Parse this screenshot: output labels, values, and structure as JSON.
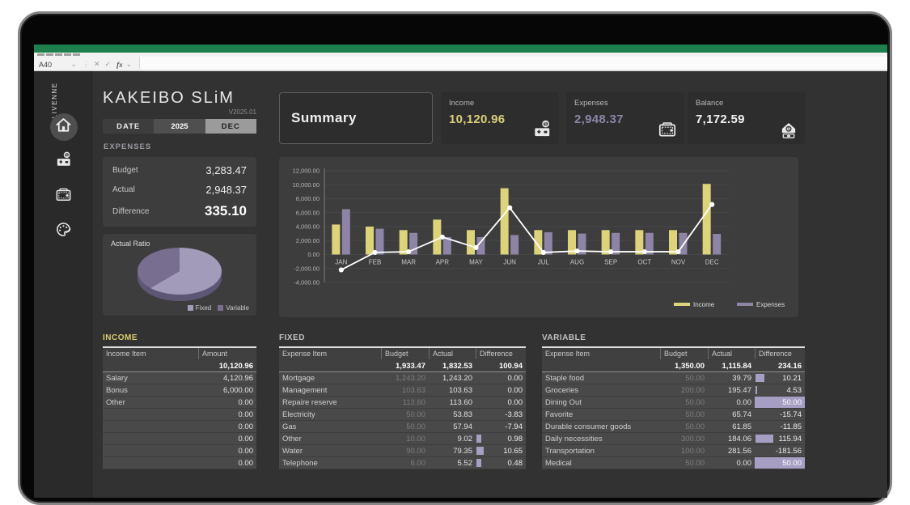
{
  "chrome": {
    "name_box": "A40",
    "fx_label": "fx",
    "brand_vertical": "OLIVENNE"
  },
  "sidebar": {
    "items": [
      {
        "name": "home",
        "icon": "home-icon",
        "active": true
      },
      {
        "name": "income",
        "icon": "cash-register-icon",
        "active": false
      },
      {
        "name": "wallet",
        "icon": "wallet-icon",
        "active": false
      },
      {
        "name": "theme",
        "icon": "palette-icon",
        "active": false
      }
    ]
  },
  "header": {
    "title": "KAKEIBO SLiM",
    "version": "V2025.01",
    "date": {
      "label": "DATE",
      "year": "2025",
      "month": "DEC"
    }
  },
  "summary": {
    "title": "Summary",
    "cards": [
      {
        "label": "Income",
        "value": "10,120.96",
        "color": "#d9ce79",
        "icon": "cash-register-icon"
      },
      {
        "label": "Expenses",
        "value": "2,948.37",
        "color": "#8d84a8",
        "icon": "wallet-icon"
      },
      {
        "label": "Balance",
        "value": "7,172.59",
        "color": "#f2f2f2",
        "icon": "house-savings-icon"
      }
    ]
  },
  "expenses_panel": {
    "title": "EXPENSES",
    "rows": [
      {
        "label": "Budget",
        "value": "3,283.47"
      },
      {
        "label": "Actual",
        "value": "2,948.37"
      },
      {
        "label": "Difference",
        "value": "335.10"
      }
    ]
  },
  "chart_data": [
    {
      "type": "bar",
      "title": "Monthly Income vs Expenses with Balance line",
      "categories": [
        "JAN",
        "FEB",
        "MAR",
        "APR",
        "MAY",
        "JUN",
        "JUL",
        "AUG",
        "SEP",
        "OCT",
        "NOV",
        "DEC"
      ],
      "series": [
        {
          "name": "Income",
          "chart": "bar",
          "color": "#ddd37a",
          "in_legend": true,
          "values": [
            4300,
            4000,
            3500,
            5000,
            3500,
            9500,
            3500,
            3500,
            3500,
            3500,
            3500,
            10120.96
          ]
        },
        {
          "name": "Expenses",
          "chart": "bar",
          "color": "#8d84a6",
          "in_legend": true,
          "values": [
            6500,
            3700,
            3100,
            2500,
            2500,
            2800,
            3200,
            3000,
            3100,
            3100,
            3100,
            2948.37
          ]
        },
        {
          "name": "Balance",
          "chart": "line",
          "color": "#ffffff",
          "in_legend": false,
          "values": [
            -2200,
            300,
            400,
            2500,
            1000,
            6700,
            300,
            500,
            400,
            400,
            400,
            7172.59
          ]
        }
      ],
      "ylim": [
        -4000,
        12000
      ],
      "ytick_step": 2000,
      "grid": true,
      "legend_position": "bottom-right"
    },
    {
      "type": "pie",
      "title": "Actual Ratio",
      "labels": [
        "Fixed",
        "Variable"
      ],
      "values": [
        1832.53,
        1115.84
      ],
      "colors": [
        "#a39bba",
        "#786e8f"
      ],
      "legend_position": "bottom-right"
    }
  ],
  "tables": {
    "income": {
      "title": "INCOME",
      "headers": [
        "Income Item",
        "Amount"
      ],
      "total": "10,120.96",
      "rows": [
        {
          "item": "Salary",
          "amount": "4,120.96"
        },
        {
          "item": "Bonus",
          "amount": "6,000.00"
        },
        {
          "item": "Other",
          "amount": "0.00"
        },
        {
          "item": "",
          "amount": "0.00"
        },
        {
          "item": "",
          "amount": "0.00"
        },
        {
          "item": "",
          "amount": "0.00"
        },
        {
          "item": "",
          "amount": "0.00"
        },
        {
          "item": "",
          "amount": "0.00"
        }
      ]
    },
    "fixed": {
      "title": "FIXED",
      "headers": [
        "Expense Item",
        "Budget",
        "Actual",
        "Difference"
      ],
      "totals": {
        "budget": "1,933.47",
        "actual": "1,832.53",
        "diff": "100.94"
      },
      "rows": [
        {
          "item": "Mortgage",
          "budget": "1,243.20",
          "actual": "1,243.20",
          "diff": "0.00",
          "bar": 0,
          "highlight": false
        },
        {
          "item": "Management",
          "budget": "103.63",
          "actual": "103.63",
          "diff": "0.00",
          "bar": 0,
          "highlight": false
        },
        {
          "item": "Repaire reserve",
          "budget": "113.60",
          "actual": "113.60",
          "diff": "0.00",
          "bar": 0,
          "highlight": false
        },
        {
          "item": "Electricity",
          "budget": "50.00",
          "actual": "53.83",
          "diff": "-3.83",
          "bar": 0,
          "highlight": false
        },
        {
          "item": "Gas",
          "budget": "50.00",
          "actual": "57.94",
          "diff": "-7.94",
          "bar": 0,
          "highlight": false
        },
        {
          "item": "Other",
          "budget": "10.00",
          "actual": "9.02",
          "diff": "0.98",
          "bar": 0.1,
          "highlight": false
        },
        {
          "item": "Water",
          "budget": "90.00",
          "actual": "79.35",
          "diff": "10.65",
          "bar": 0.14,
          "highlight": false
        },
        {
          "item": "Telephone",
          "budget": "6.00",
          "actual": "5.52",
          "diff": "0.48",
          "bar": 0.1,
          "highlight": false
        }
      ]
    },
    "variable": {
      "title": "VARIABLE",
      "headers": [
        "Expense Item",
        "Budget",
        "Actual",
        "Difference"
      ],
      "totals": {
        "budget": "1,350.00",
        "actual": "1,115.84",
        "diff": "234.16"
      },
      "rows": [
        {
          "item": "Staple food",
          "budget": "50.00",
          "actual": "39.79",
          "diff": "10.21",
          "bar": 0.18,
          "highlight": false
        },
        {
          "item": "Groceries",
          "budget": "200.00",
          "actual": "195.47",
          "diff": "4.53",
          "bar": 0.04,
          "highlight": false
        },
        {
          "item": "Dining Out",
          "budget": "50.00",
          "actual": "0.00",
          "diff": "50.00",
          "bar": 0,
          "highlight": true
        },
        {
          "item": "Favorite",
          "budget": "50.00",
          "actual": "65.74",
          "diff": "-15.74",
          "bar": 0,
          "highlight": false
        },
        {
          "item": "Durable consumer goods",
          "budget": "50.00",
          "actual": "61.85",
          "diff": "-11.85",
          "bar": 0,
          "highlight": false
        },
        {
          "item": "Daily necessities",
          "budget": "300.00",
          "actual": "184.06",
          "diff": "115.94",
          "bar": 0.35,
          "highlight": false
        },
        {
          "item": "Transportation",
          "budget": "100.00",
          "actual": "281.56",
          "diff": "-181.56",
          "bar": 0,
          "highlight": false
        },
        {
          "item": "Medical",
          "budget": "50.00",
          "actual": "0.00",
          "diff": "50.00",
          "bar": 0,
          "highlight": true
        }
      ]
    }
  },
  "colors": {
    "excel_green": "#1d7f4b",
    "accent_income": "#d9ce79",
    "accent_expenses": "#8d84a8",
    "balance_line": "#ffffff",
    "databar": "#a79ec4",
    "panel": "#3d3d3d",
    "background": "#323232"
  }
}
